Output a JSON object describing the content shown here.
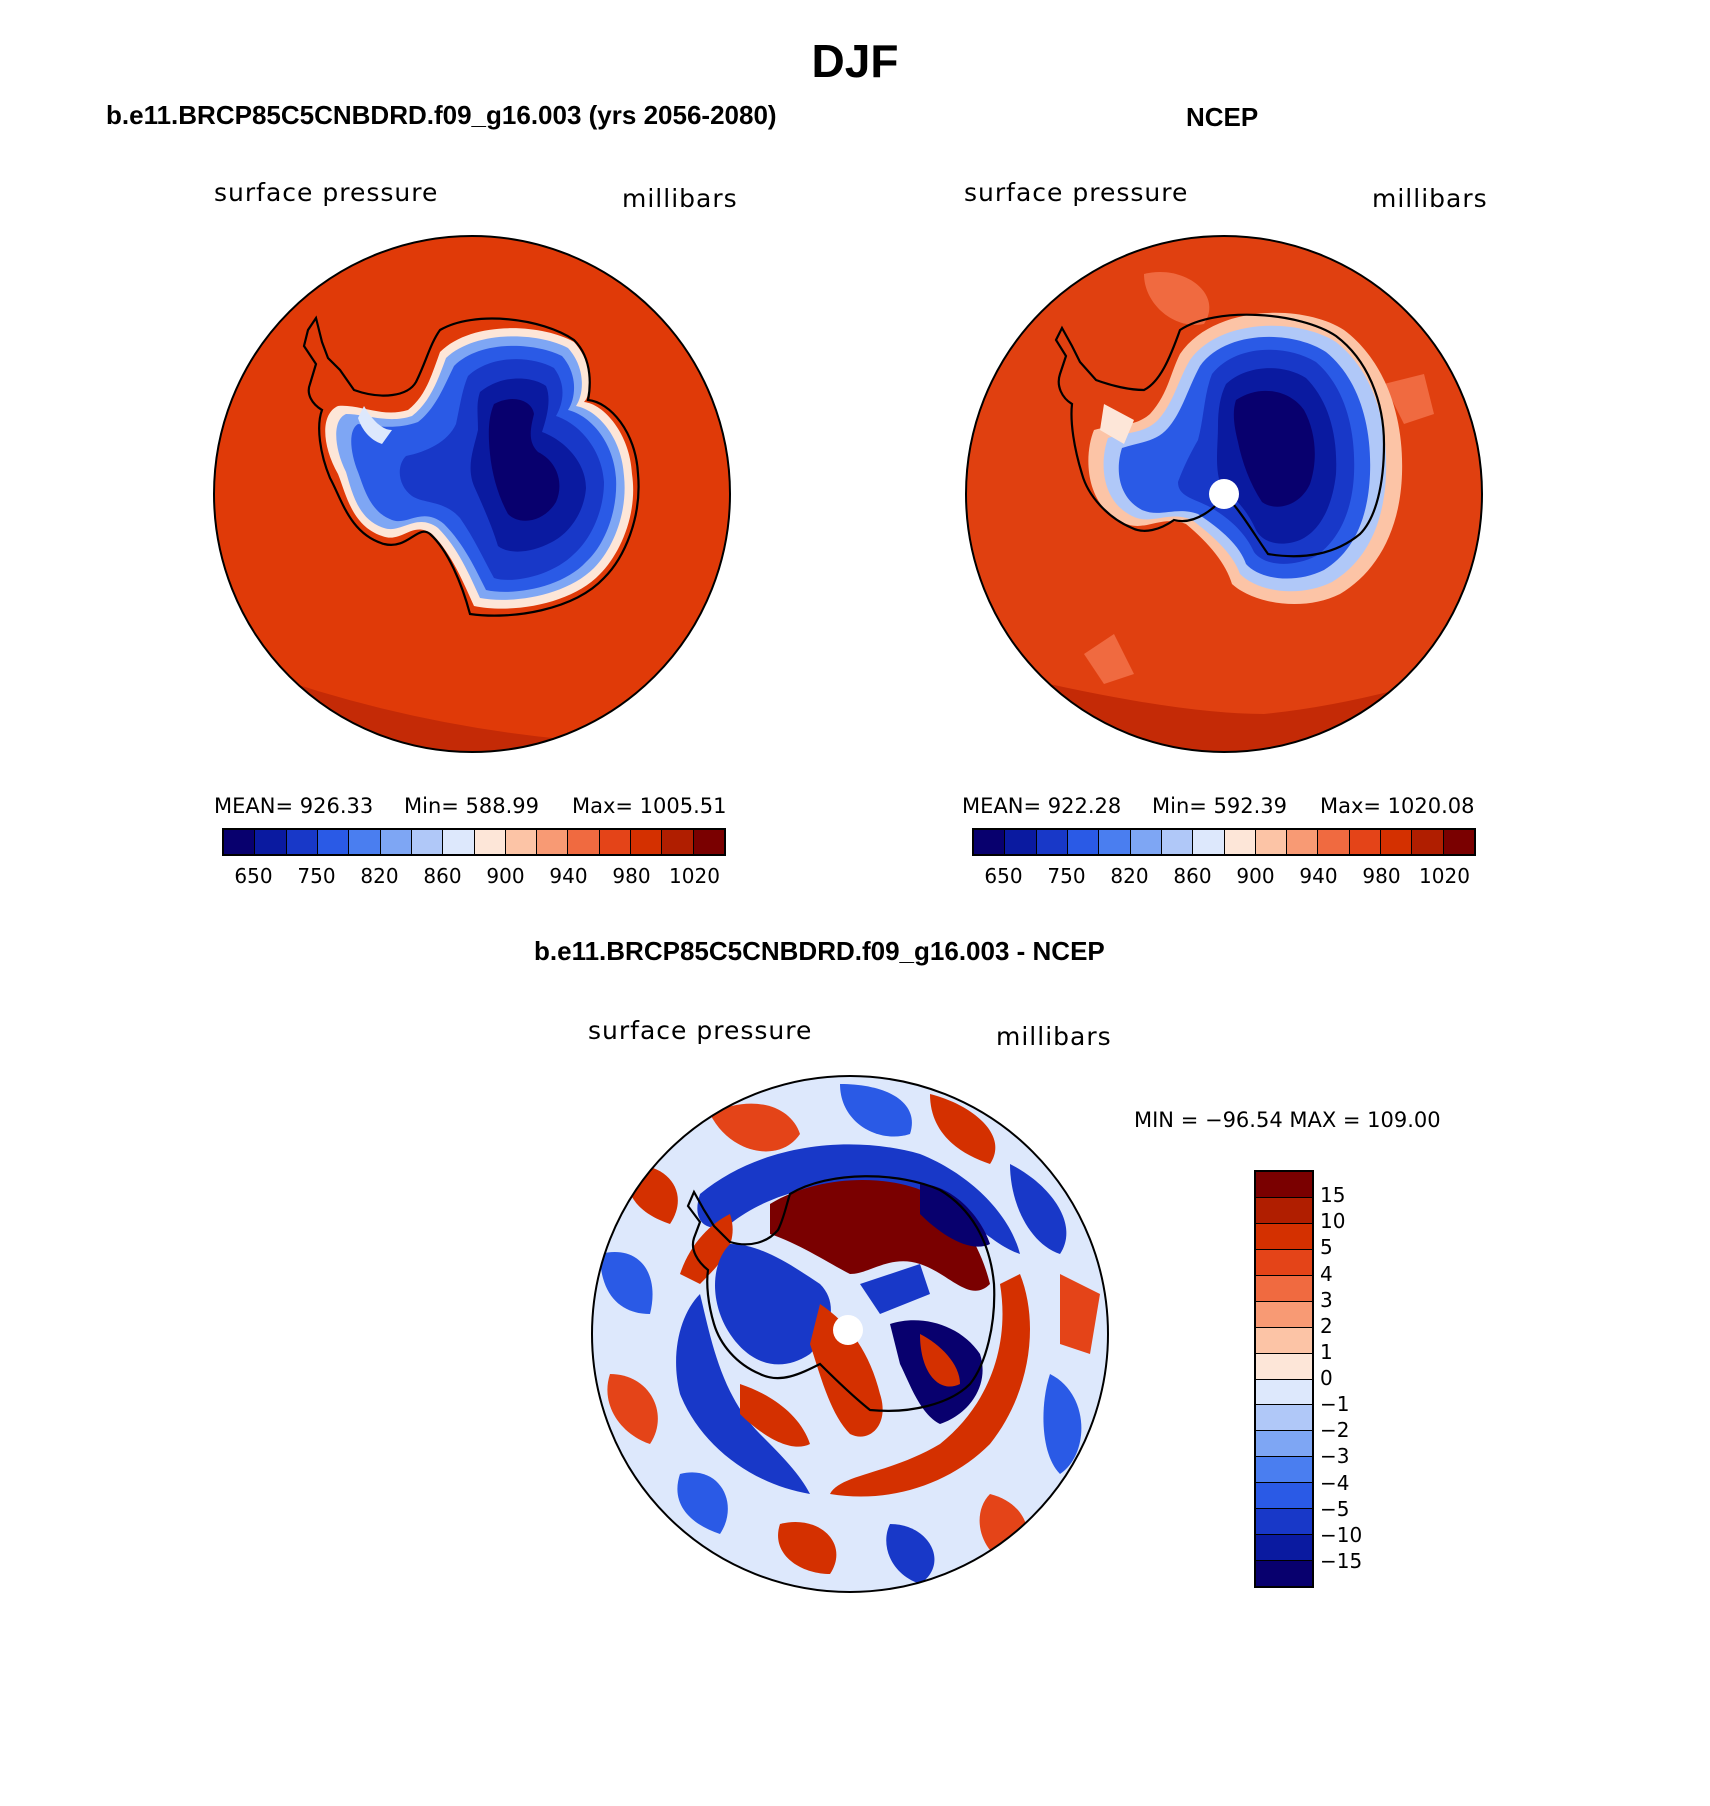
{
  "title": "DJF",
  "panels": [
    {
      "title": "b.e11.BRCP85C5CNBDRD.f09_g16.003 (yrs 2056-2080)",
      "left_label": "surface pressure",
      "right_label": "millibars",
      "stats": {
        "mean": "MEAN= 926.33",
        "min": "Min= 588.99",
        "max": "Max= 1005.51"
      },
      "colorbar_ticks": [
        "650",
        "750",
        "820",
        "860",
        "900",
        "940",
        "980",
        "1020"
      ]
    },
    {
      "title": "NCEP",
      "left_label": "surface pressure",
      "right_label": "millibars",
      "stats": {
        "mean": "MEAN= 922.28",
        "min": "Min= 592.39",
        "max": "Max= 1020.08"
      },
      "colorbar_ticks": [
        "650",
        "750",
        "820",
        "860",
        "900",
        "940",
        "980",
        "1020"
      ]
    }
  ],
  "diff_panel": {
    "title": "b.e11.BRCP85C5CNBDRD.f09_g16.003 - NCEP",
    "left_label": "surface pressure",
    "right_label": "millibars",
    "minmax": "MIN = −96.54 MAX = 109.00",
    "colorbar_ticks": [
      "15",
      "10",
      "5",
      "4",
      "3",
      "2",
      "1",
      "0",
      "−1",
      "−2",
      "−3",
      "−4",
      "−5",
      "−10",
      "−15"
    ]
  },
  "colors": {
    "abs_scale": [
      "#08006e",
      "#0a1aa0",
      "#1838c8",
      "#2a5ae6",
      "#4a7ef0",
      "#7ea6f4",
      "#b0c8f8",
      "#dde8fc",
      "#fde6d8",
      "#fcc4a6",
      "#f89a74",
      "#f06a40",
      "#e44418",
      "#d43000",
      "#b01e00",
      "#7a0000"
    ],
    "diff_scale": [
      "#7a0000",
      "#b01e00",
      "#d43000",
      "#e44418",
      "#f06a40",
      "#f89a74",
      "#fcc4a6",
      "#fde6d8",
      "#dde8fc",
      "#b0c8f8",
      "#7ea6f4",
      "#4a7ef0",
      "#2a5ae6",
      "#1838c8",
      "#0a1aa0",
      "#08006e"
    ],
    "ocean_model": "#e03a08",
    "ocean_obs": "#e04010"
  }
}
